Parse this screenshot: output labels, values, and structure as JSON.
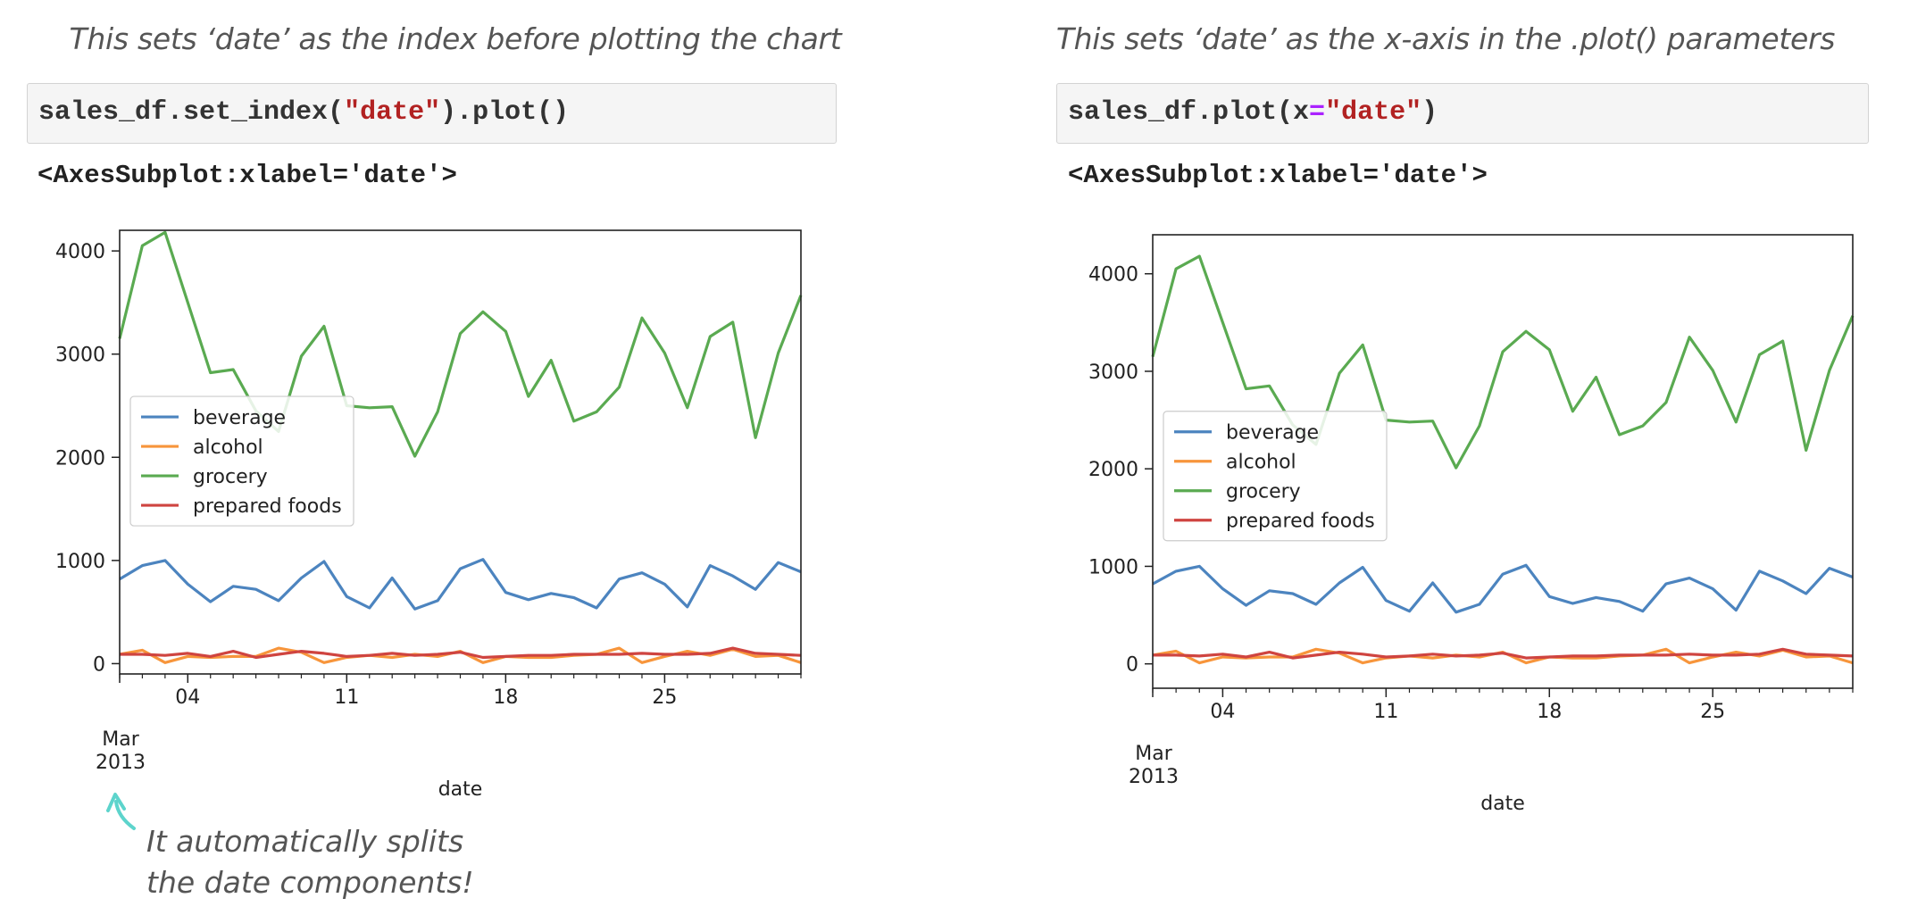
{
  "panels": [
    {
      "caption": "This sets ‘date’ as the index before plotting the chart",
      "code": {
        "prefix": "sales_df.set_index(",
        "string": "\"date\"",
        "suffix": ").plot()"
      },
      "output": "<AxesSubplot:xlabel='date'>",
      "annotation": {
        "line1": "It automatically splits",
        "line2": "the date components!"
      }
    },
    {
      "caption": "This sets ‘date’ as the x-axis in the .plot() parameters",
      "code": {
        "prefix": "sales_df.plot(x",
        "operator": "=",
        "string": "\"date\"",
        "suffix": ")"
      },
      "output": "<AxesSubplot:xlabel='date'>"
    }
  ],
  "colors": {
    "beverage": "#4c84bf",
    "alcohol": "#f7953b",
    "grocery": "#5aaa51",
    "prepared_foods": "#cf4440",
    "annotation_arrow": "#5dd4cc"
  },
  "chart_data": [
    {
      "type": "line",
      "xlabel": "date",
      "ylabel": "",
      "x": [
        "2013-03-01",
        "2013-03-02",
        "2013-03-03",
        "2013-03-04",
        "2013-03-05",
        "2013-03-06",
        "2013-03-07",
        "2013-03-08",
        "2013-03-09",
        "2013-03-10",
        "2013-03-11",
        "2013-03-12",
        "2013-03-13",
        "2013-03-14",
        "2013-03-15",
        "2013-03-16",
        "2013-03-17",
        "2013-03-18",
        "2013-03-19",
        "2013-03-20",
        "2013-03-21",
        "2013-03-22",
        "2013-03-23",
        "2013-03-24",
        "2013-03-25",
        "2013-03-26",
        "2013-03-27",
        "2013-03-28",
        "2013-03-29",
        "2013-03-30",
        "2013-03-31"
      ],
      "xlim": [
        "2013-03-01",
        "2013-03-31"
      ],
      "x_tick_labels": [
        "04",
        "11",
        "18",
        "25"
      ],
      "x_tick_dates": [
        "2013-03-04",
        "2013-03-11",
        "2013-03-18",
        "2013-03-25"
      ],
      "x_secondary_label": {
        "month": "Mar",
        "year": "2013"
      },
      "ylim": [
        -100,
        4200
      ],
      "y_ticks": [
        0,
        1000,
        2000,
        3000,
        4000
      ],
      "legend_location": "center-left",
      "grid": false,
      "series": [
        {
          "name": "beverage",
          "values": [
            820,
            950,
            1000,
            770,
            600,
            750,
            720,
            610,
            830,
            990,
            650,
            540,
            830,
            530,
            610,
            920,
            1010,
            690,
            620,
            680,
            640,
            540,
            820,
            880,
            770,
            550,
            950,
            850,
            720,
            980,
            890
          ]
        },
        {
          "name": "alcohol",
          "values": [
            90,
            130,
            10,
            70,
            60,
            70,
            70,
            150,
            110,
            10,
            60,
            80,
            60,
            90,
            70,
            120,
            10,
            70,
            60,
            60,
            80,
            90,
            150,
            10,
            70,
            120,
            80,
            140,
            70,
            80,
            10
          ]
        },
        {
          "name": "grocery",
          "values": [
            3150,
            4050,
            4180,
            3500,
            2820,
            2850,
            2450,
            2250,
            2980,
            3270,
            2500,
            2480,
            2490,
            2010,
            2440,
            3200,
            3410,
            3220,
            2590,
            2940,
            2350,
            2440,
            2680,
            3350,
            3010,
            2480,
            3170,
            3310,
            2190,
            3010,
            3570
          ]
        },
        {
          "name": "prepared foods",
          "values": [
            90,
            90,
            80,
            100,
            70,
            120,
            60,
            90,
            120,
            100,
            70,
            80,
            100,
            80,
            90,
            110,
            60,
            70,
            80,
            80,
            90,
            90,
            90,
            100,
            90,
            90,
            100,
            150,
            100,
            90,
            80
          ]
        }
      ]
    },
    {
      "type": "line",
      "xlabel": "date",
      "ylabel": "",
      "x": [
        "2013-03-01",
        "2013-03-02",
        "2013-03-03",
        "2013-03-04",
        "2013-03-05",
        "2013-03-06",
        "2013-03-07",
        "2013-03-08",
        "2013-03-09",
        "2013-03-10",
        "2013-03-11",
        "2013-03-12",
        "2013-03-13",
        "2013-03-14",
        "2013-03-15",
        "2013-03-16",
        "2013-03-17",
        "2013-03-18",
        "2013-03-19",
        "2013-03-20",
        "2013-03-21",
        "2013-03-22",
        "2013-03-23",
        "2013-03-24",
        "2013-03-25",
        "2013-03-26",
        "2013-03-27",
        "2013-03-28",
        "2013-03-29",
        "2013-03-30",
        "2013-03-31"
      ],
      "xlim": [
        "2013-03-01",
        "2013-03-31"
      ],
      "x_tick_labels": [
        "04",
        "11",
        "18",
        "25"
      ],
      "x_tick_dates": [
        "2013-03-04",
        "2013-03-11",
        "2013-03-18",
        "2013-03-25"
      ],
      "x_secondary_label": {
        "month": "Mar",
        "year": "2013"
      },
      "ylim": [
        -250,
        4400
      ],
      "y_ticks": [
        0,
        1000,
        2000,
        3000,
        4000
      ],
      "legend_location": "center-left",
      "grid": false,
      "series": [
        {
          "name": "beverage",
          "values": [
            820,
            950,
            1000,
            770,
            600,
            750,
            720,
            610,
            830,
            990,
            650,
            540,
            830,
            530,
            610,
            920,
            1010,
            690,
            620,
            680,
            640,
            540,
            820,
            880,
            770,
            550,
            950,
            850,
            720,
            980,
            890
          ]
        },
        {
          "name": "alcohol",
          "values": [
            90,
            130,
            10,
            70,
            60,
            70,
            70,
            150,
            110,
            10,
            60,
            80,
            60,
            90,
            70,
            120,
            10,
            70,
            60,
            60,
            80,
            90,
            150,
            10,
            70,
            120,
            80,
            140,
            70,
            80,
            10
          ]
        },
        {
          "name": "grocery",
          "values": [
            3150,
            4050,
            4180,
            3500,
            2820,
            2850,
            2450,
            2250,
            2980,
            3270,
            2500,
            2480,
            2490,
            2010,
            2440,
            3200,
            3410,
            3220,
            2590,
            2940,
            2350,
            2440,
            2680,
            3350,
            3010,
            2480,
            3170,
            3310,
            2190,
            3010,
            3570
          ]
        },
        {
          "name": "prepared foods",
          "values": [
            90,
            90,
            80,
            100,
            70,
            120,
            60,
            90,
            120,
            100,
            70,
            80,
            100,
            80,
            90,
            110,
            60,
            70,
            80,
            80,
            90,
            90,
            90,
            100,
            90,
            90,
            100,
            150,
            100,
            90,
            80
          ]
        }
      ]
    }
  ]
}
